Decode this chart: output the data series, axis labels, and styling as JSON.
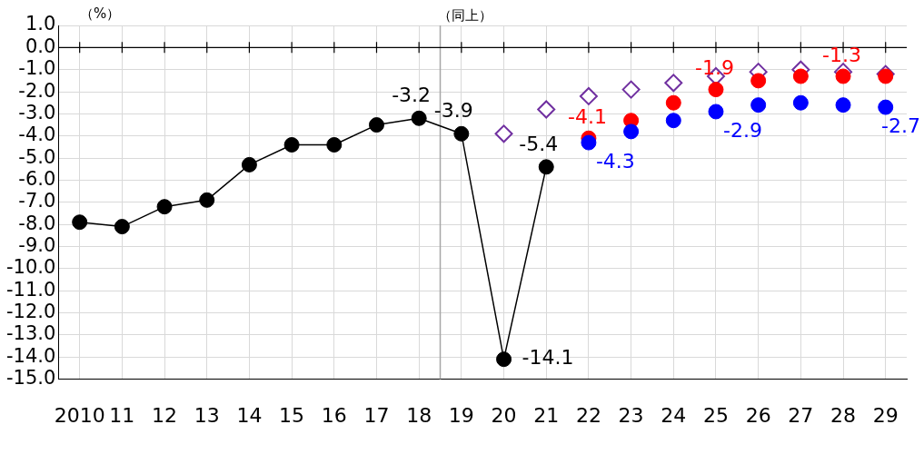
{
  "chart_data": {
    "type": "scatter",
    "ylabel": "（%）",
    "annotations": [
      "（同上）"
    ],
    "x": [
      2010,
      2011,
      2012,
      2013,
      2014,
      2015,
      2016,
      2017,
      2018,
      2019,
      2020,
      2021,
      2022,
      2023,
      2024,
      2025,
      2026,
      2027,
      2028,
      2029
    ],
    "series": [
      {
        "type": "line",
        "color": "#000000",
        "marker": "circle",
        "values": [
          -7.9,
          -8.1,
          -7.2,
          -6.9,
          -5.3,
          -4.4,
          -4.4,
          -3.5,
          -3.2,
          -3.9,
          -14.1,
          -5.4,
          null,
          null,
          null,
          null,
          null,
          null,
          null,
          null
        ],
        "value_labels": [
          null,
          null,
          null,
          null,
          null,
          null,
          null,
          null,
          "-3.2",
          "-3.9",
          "-14.1",
          "-5.4",
          null,
          null,
          null,
          null,
          null,
          null,
          null,
          null
        ]
      },
      {
        "type": "scatter",
        "color": "#7030a0",
        "marker": "diamond",
        "values": [
          null,
          null,
          null,
          null,
          null,
          null,
          null,
          null,
          null,
          null,
          -3.9,
          -2.8,
          -2.2,
          -1.9,
          -1.6,
          -1.3,
          -1.1,
          -1.0,
          -1.1,
          -1.2
        ]
      },
      {
        "type": "scatter",
        "color": "#ff0000",
        "marker": "circle",
        "values": [
          null,
          null,
          null,
          null,
          null,
          null,
          null,
          null,
          null,
          null,
          null,
          null,
          -4.1,
          -3.3,
          -2.5,
          -1.9,
          -1.5,
          -1.3,
          -1.3,
          -1.3
        ],
        "value_labels": [
          null,
          null,
          null,
          null,
          null,
          null,
          null,
          null,
          null,
          null,
          null,
          null,
          "-4.1",
          null,
          null,
          "-1.9",
          null,
          null,
          "-1.3",
          null
        ]
      },
      {
        "type": "scatter",
        "color": "#0000ff",
        "marker": "circle",
        "values": [
          null,
          null,
          null,
          null,
          null,
          null,
          null,
          null,
          null,
          null,
          null,
          null,
          -4.3,
          -3.8,
          -3.3,
          -2.9,
          -2.6,
          -2.5,
          -2.6,
          -2.7
        ],
        "value_labels": [
          null,
          null,
          null,
          null,
          null,
          null,
          null,
          null,
          null,
          null,
          null,
          null,
          "-4.3",
          null,
          null,
          "-2.9",
          null,
          null,
          null,
          "-2.7"
        ]
      }
    ],
    "xlim": [
      2009.5,
      2029.5
    ],
    "xticks": [
      2010,
      {
        "value": 2011,
        "label": "11"
      },
      {
        "value": 2012,
        "label": "12"
      },
      {
        "value": 2013,
        "label": "13"
      },
      {
        "value": 2014,
        "label": "14"
      },
      {
        "value": 2015,
        "label": "15"
      },
      {
        "value": 2016,
        "label": "16"
      },
      {
        "value": 2017,
        "label": "17"
      },
      {
        "value": 2018,
        "label": "18"
      },
      {
        "value": 2019,
        "label": "19"
      },
      {
        "value": 2020,
        "label": "20"
      },
      {
        "value": 2021,
        "label": "21"
      },
      {
        "value": 2022,
        "label": "22"
      },
      {
        "value": 2023,
        "label": "23"
      },
      {
        "value": 2024,
        "label": "24"
      },
      {
        "value": 2025,
        "label": "25"
      },
      {
        "value": 2026,
        "label": "26"
      },
      {
        "value": 2027,
        "label": "27"
      },
      {
        "value": 2028,
        "label": "28"
      },
      {
        "value": 2029,
        "label": "29"
      }
    ],
    "ylim": [
      -15,
      1
    ],
    "yticks": [
      {
        "value": 1,
        "label": "1.0"
      },
      {
        "value": 0,
        "label": "0.0"
      },
      {
        "value": -1,
        "label": "-1.0"
      },
      {
        "value": -2,
        "label": "-2.0"
      },
      {
        "value": -3,
        "label": "-3.0"
      },
      {
        "value": -4,
        "label": "-4.0"
      },
      {
        "value": -5,
        "label": "-5.0"
      },
      {
        "value": -6,
        "label": "-6.0"
      },
      {
        "value": -7,
        "label": "-7.0"
      },
      {
        "value": -8,
        "label": "-8.0"
      },
      {
        "value": -9,
        "label": "-9.0"
      },
      {
        "value": -10,
        "label": "-10.0"
      },
      {
        "value": -11,
        "label": "-11.0"
      },
      {
        "value": -12,
        "label": "-12.0"
      },
      {
        "value": -13,
        "label": "-13.0"
      },
      {
        "value": -14,
        "label": "-14.0"
      },
      {
        "value": -15,
        "label": "-15.0"
      }
    ],
    "ref_lines": [
      {
        "axis": "x",
        "value": 2018.5,
        "color": "#a6a6a6"
      }
    ],
    "grid": true,
    "legend": false
  }
}
